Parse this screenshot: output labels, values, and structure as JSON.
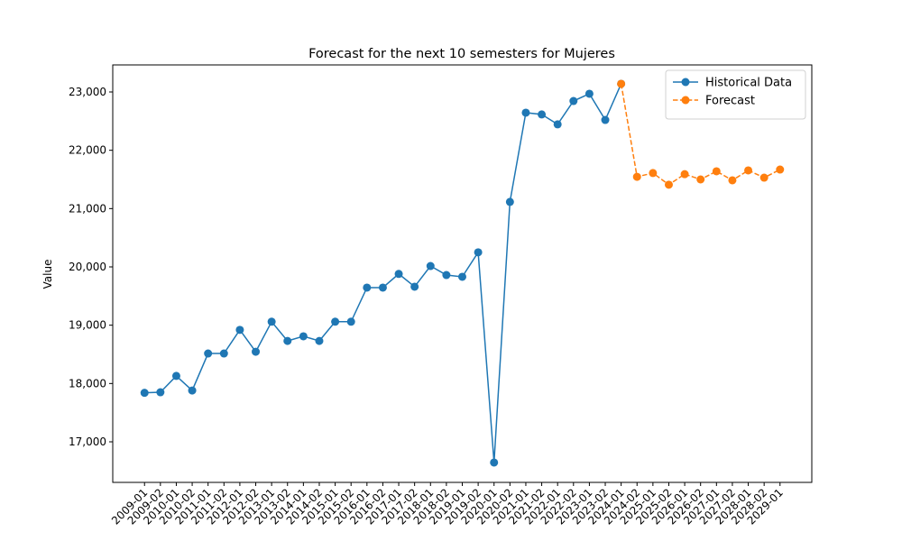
{
  "chart_data": {
    "type": "line",
    "title": "Forecast for the next 10 semesters for Mujeres",
    "y_label": "Value",
    "categories": [
      "2009-01",
      "2009-02",
      "2010-01",
      "2010-02",
      "2011-01",
      "2011-02",
      "2012-01",
      "2012-02",
      "2013-01",
      "2013-02",
      "2014-01",
      "2014-02",
      "2015-01",
      "2015-02",
      "2016-01",
      "2016-02",
      "2017-01",
      "2017-02",
      "2018-01",
      "2018-02",
      "2019-01",
      "2019-02",
      "2020-01",
      "2020-02",
      "2021-01",
      "2021-02",
      "2022-01",
      "2022-02",
      "2023-01",
      "2023-02",
      "2024-01",
      "2024-02",
      "2025-01",
      "2025-02",
      "2026-01",
      "2026-02",
      "2027-01",
      "2027-02",
      "2028-01",
      "2028-02",
      "2029-01"
    ],
    "series": [
      {
        "name": "Historical Data",
        "color": "#1f77b4",
        "dashed": false,
        "values": [
          17840,
          17850,
          18130,
          17880,
          18515,
          18515,
          18920,
          18545,
          19060,
          18730,
          18810,
          18730,
          19060,
          19060,
          19645,
          19645,
          19880,
          19660,
          20015,
          19860,
          19830,
          20250,
          16645,
          21115,
          22645,
          22615,
          22445,
          22845,
          22970,
          22520,
          23140,
          null,
          null,
          null,
          null,
          null,
          null,
          null,
          null,
          null,
          null
        ]
      },
      {
        "name": "Forecast",
        "color": "#ff7f0e",
        "dashed": true,
        "values": [
          null,
          null,
          null,
          null,
          null,
          null,
          null,
          null,
          null,
          null,
          null,
          null,
          null,
          null,
          null,
          null,
          null,
          null,
          null,
          null,
          null,
          null,
          null,
          null,
          null,
          null,
          null,
          null,
          null,
          null,
          23140,
          21545,
          21610,
          21410,
          21590,
          21500,
          21640,
          21485,
          21655,
          21530,
          21670
        ]
      }
    ],
    "ylim": [
      16304,
      23464
    ],
    "yticks": [
      {
        "value": 17000,
        "label": "17,000"
      },
      {
        "value": 18000,
        "label": "18,000"
      },
      {
        "value": 19000,
        "label": "19,000"
      },
      {
        "value": 20000,
        "label": "20,000"
      },
      {
        "value": 21000,
        "label": "21,000"
      },
      {
        "value": 22000,
        "label": "22,000"
      },
      {
        "value": 23000,
        "label": "23,000"
      }
    ],
    "grid": false,
    "legend_position": "upper right"
  }
}
